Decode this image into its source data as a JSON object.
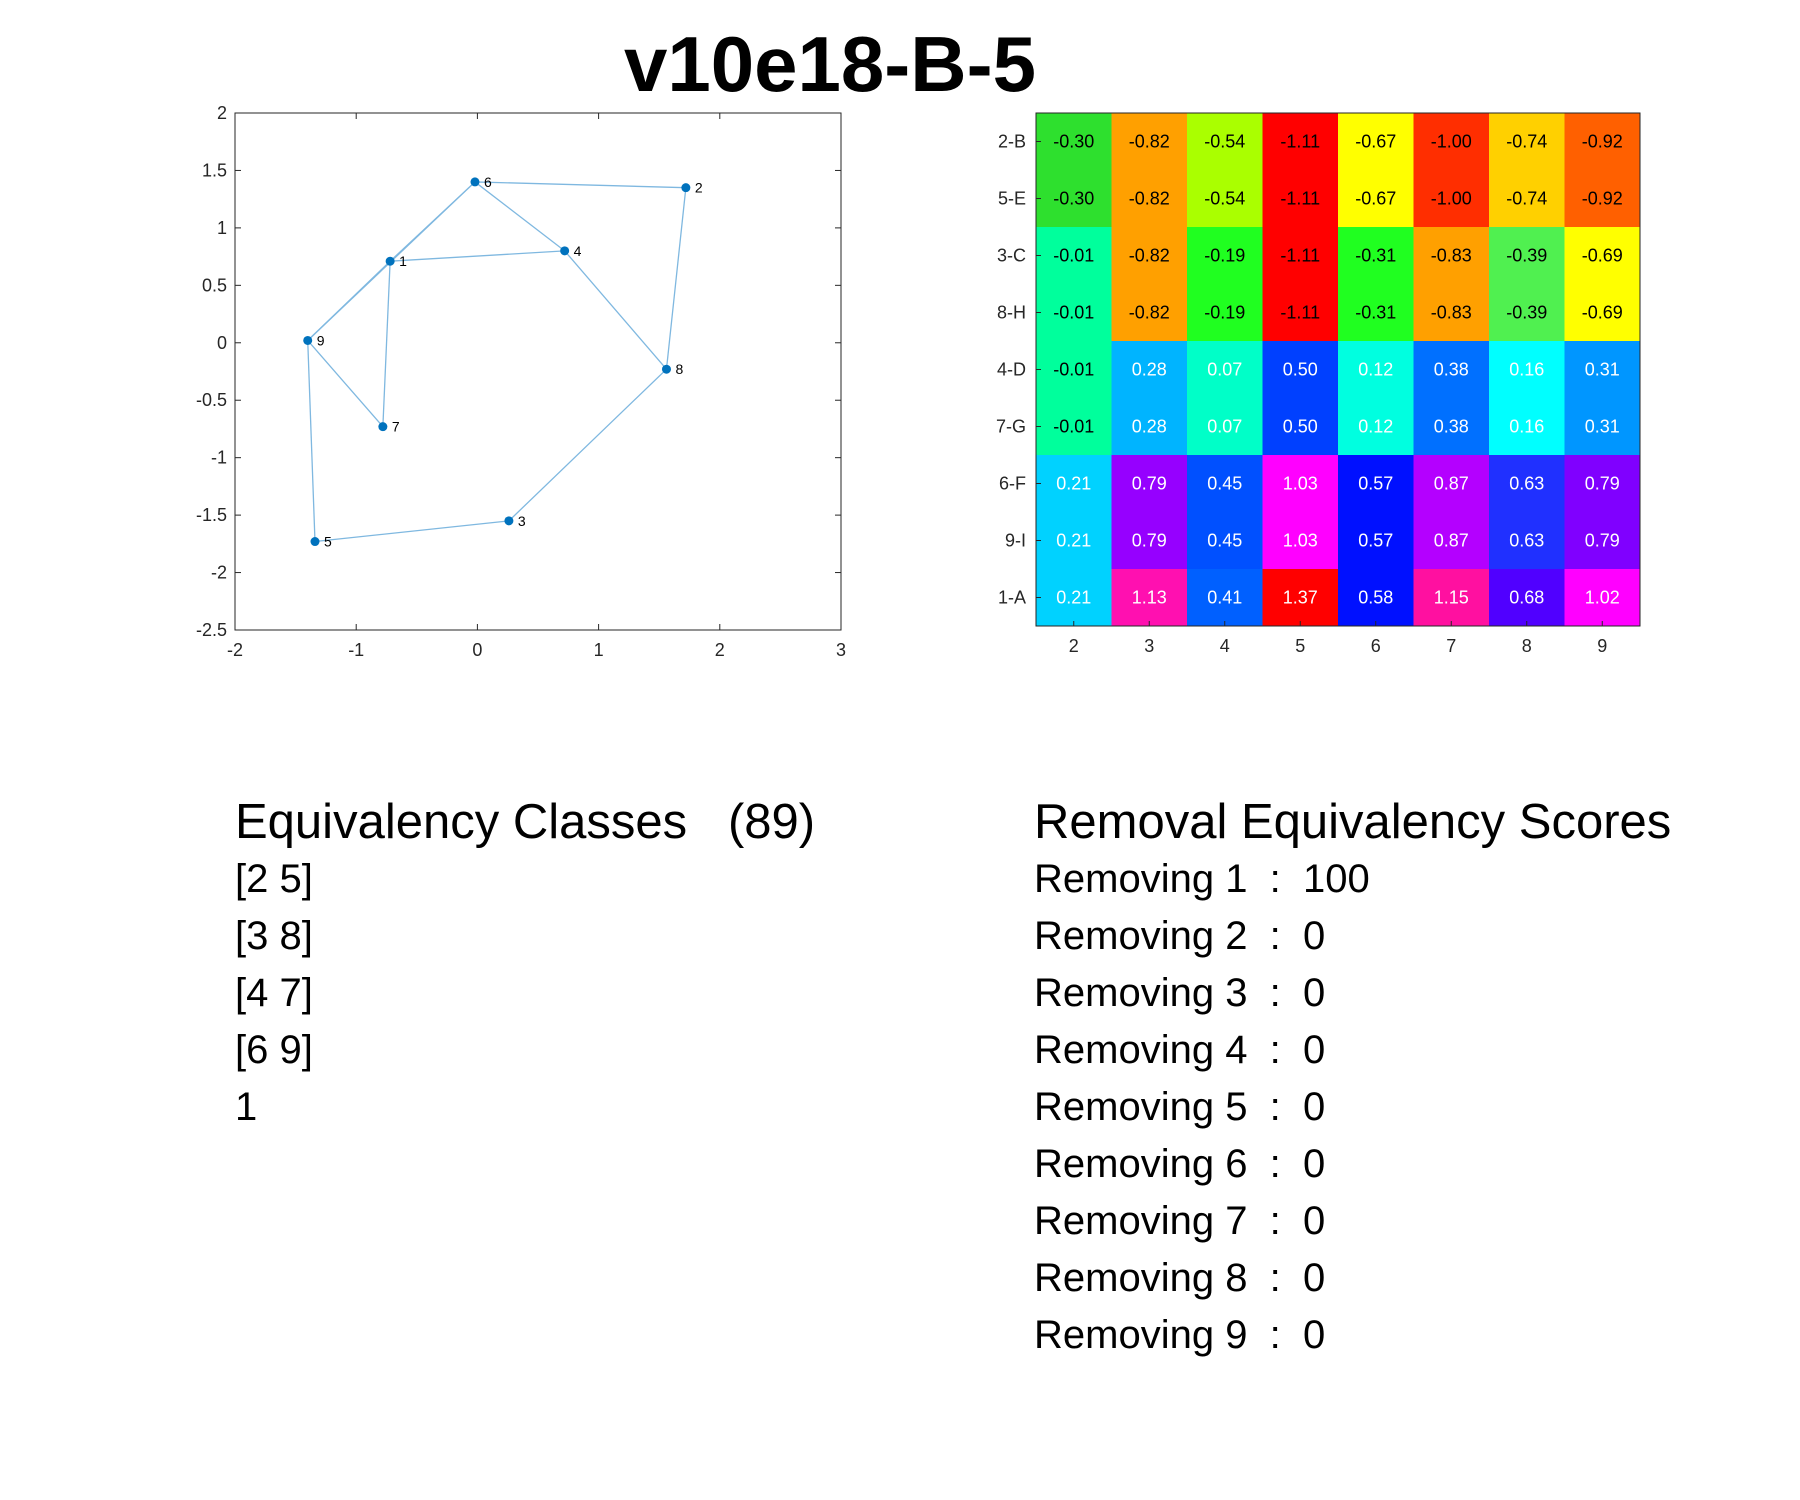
{
  "title": "v10e18-B-5",
  "chart_data": [
    {
      "type": "scatter",
      "xlim": [
        -2,
        3
      ],
      "ylim": [
        -2.5,
        2
      ],
      "xticks": [
        "-2",
        "-1",
        "0",
        "1",
        "2",
        "3"
      ],
      "yticks": [
        "2",
        "1.5",
        "1",
        "0.5",
        "0",
        "-0.5",
        "-1",
        "-1.5",
        "-2",
        "-2.5"
      ],
      "grid": false,
      "colors": {
        "point": "#0072BD",
        "edge": "#7FB8E0"
      },
      "points": [
        {
          "label": "1",
          "x": -0.72,
          "y": 0.71
        },
        {
          "label": "2",
          "x": 1.72,
          "y": 1.35
        },
        {
          "label": "3",
          "x": 0.26,
          "y": -1.55
        },
        {
          "label": "4",
          "x": 0.72,
          "y": 0.8
        },
        {
          "label": "5",
          "x": -1.34,
          "y": -1.73
        },
        {
          "label": "6",
          "x": -0.02,
          "y": 1.4
        },
        {
          "label": "7",
          "x": -0.78,
          "y": -0.73
        },
        {
          "label": "8",
          "x": 1.56,
          "y": -0.23
        },
        {
          "label": "9",
          "x": -1.4,
          "y": 0.02
        }
      ],
      "edges": [
        [
          "6",
          "2"
        ],
        [
          "2",
          "8"
        ],
        [
          "6",
          "4"
        ],
        [
          "4",
          "8"
        ],
        [
          "8",
          "3"
        ],
        [
          "3",
          "5"
        ],
        [
          "5",
          "9"
        ],
        [
          "9",
          "7"
        ],
        [
          "9",
          "1"
        ],
        [
          "9",
          "6"
        ],
        [
          "1",
          "6"
        ],
        [
          "1",
          "4"
        ],
        [
          "1",
          "7"
        ]
      ]
    },
    {
      "type": "heatmap",
      "rows": [
        "2-B",
        "5-E",
        "3-C",
        "8-H",
        "4-D",
        "7-G",
        "6-F",
        "9-I",
        "1-A"
      ],
      "cols": [
        "2",
        "3",
        "4",
        "5",
        "6",
        "7",
        "8",
        "9"
      ],
      "values": [
        [
          "-0.30",
          "-0.82",
          "-0.54",
          "-1.11",
          "-0.67",
          "-1.00",
          "-0.74",
          "-0.92"
        ],
        [
          "-0.30",
          "-0.82",
          "-0.54",
          "-1.11",
          "-0.67",
          "-1.00",
          "-0.74",
          "-0.92"
        ],
        [
          "-0.01",
          "-0.82",
          "-0.19",
          "-1.11",
          "-0.31",
          "-0.83",
          "-0.39",
          "-0.69"
        ],
        [
          "-0.01",
          "-0.82",
          "-0.19",
          "-1.11",
          "-0.31",
          "-0.83",
          "-0.39",
          "-0.69"
        ],
        [
          "-0.01",
          "0.28",
          "0.07",
          "0.50",
          "0.12",
          "0.38",
          "0.16",
          "0.31"
        ],
        [
          "-0.01",
          "0.28",
          "0.07",
          "0.50",
          "0.12",
          "0.38",
          "0.16",
          "0.31"
        ],
        [
          "0.21",
          "0.79",
          "0.45",
          "1.03",
          "0.57",
          "0.87",
          "0.63",
          "0.79"
        ],
        [
          "0.21",
          "0.79",
          "0.45",
          "1.03",
          "0.57",
          "0.87",
          "0.63",
          "0.79"
        ],
        [
          "0.21",
          "1.13",
          "0.41",
          "1.37",
          "0.58",
          "1.15",
          "0.68",
          "1.02"
        ]
      ],
      "cell_colors": [
        [
          "#2EE02E",
          "#FFA000",
          "#AAFF00",
          "#FF0000",
          "#FFFF00",
          "#FF2E00",
          "#FFD000",
          "#FF6000"
        ],
        [
          "#2EE02E",
          "#FFA000",
          "#AAFF00",
          "#FF0000",
          "#FFFF00",
          "#FF2E00",
          "#FFD000",
          "#FF6000"
        ],
        [
          "#00FF9C",
          "#FFA000",
          "#20FF20",
          "#FF0000",
          "#20FF20",
          "#FFA000",
          "#50F050",
          "#FFFF00"
        ],
        [
          "#00FF9C",
          "#FFA000",
          "#20FF20",
          "#FF0000",
          "#20FF20",
          "#FFA000",
          "#50F050",
          "#FFFF00"
        ],
        [
          "#00FF9C",
          "#00B4FF",
          "#00FFC8",
          "#0040FF",
          "#00FFE0",
          "#0070FF",
          "#00FFFF",
          "#0096FF"
        ],
        [
          "#00FF9C",
          "#00B4FF",
          "#00FFC8",
          "#0040FF",
          "#00FFE0",
          "#0070FF",
          "#00FFFF",
          "#0096FF"
        ],
        [
          "#00D2FF",
          "#9600FF",
          "#0050FF",
          "#FF00FF",
          "#0010FF",
          "#B400FF",
          "#2030FF",
          "#8000FF"
        ],
        [
          "#00D2FF",
          "#9600FF",
          "#0050FF",
          "#FF00FF",
          "#0010FF",
          "#B400FF",
          "#2030FF",
          "#8000FF"
        ],
        [
          "#00D2FF",
          "#FF10B0",
          "#0060FF",
          "#FF0000",
          "#0010FF",
          "#FF10A0",
          "#5000FF",
          "#FF00FF"
        ]
      ],
      "text_colors": [
        [
          "#000",
          "#000",
          "#000",
          "#000",
          "#000",
          "#000",
          "#000",
          "#000"
        ],
        [
          "#000",
          "#000",
          "#000",
          "#000",
          "#000",
          "#000",
          "#000",
          "#000"
        ],
        [
          "#000",
          "#000",
          "#000",
          "#000",
          "#000",
          "#000",
          "#000",
          "#000"
        ],
        [
          "#000",
          "#000",
          "#000",
          "#000",
          "#000",
          "#000",
          "#000",
          "#000"
        ],
        [
          "#000",
          "#fff",
          "#fff",
          "#fff",
          "#fff",
          "#fff",
          "#fff",
          "#fff"
        ],
        [
          "#000",
          "#fff",
          "#fff",
          "#fff",
          "#fff",
          "#fff",
          "#fff",
          "#fff"
        ],
        [
          "#fff",
          "#fff",
          "#fff",
          "#fff",
          "#fff",
          "#fff",
          "#fff",
          "#fff"
        ],
        [
          "#fff",
          "#fff",
          "#fff",
          "#fff",
          "#fff",
          "#fff",
          "#fff",
          "#fff"
        ],
        [
          "#fff",
          "#fff",
          "#fff",
          "#fff",
          "#fff",
          "#fff",
          "#fff",
          "#fff"
        ]
      ]
    }
  ],
  "equivalency": {
    "title": "Equivalency Classes   (89)",
    "items": [
      "[2 5]",
      "[3 8]",
      "[4 7]",
      "[6 9]",
      "1"
    ]
  },
  "removal": {
    "title": "Removal Equivalency Scores",
    "items": [
      "Removing 1  :  100",
      "Removing 2  :  0",
      "Removing 3  :  0",
      "Removing 4  :  0",
      "Removing 5  :  0",
      "Removing 6  :  0",
      "Removing 7  :  0",
      "Removing 8  :  0",
      "Removing 9  :  0"
    ]
  }
}
